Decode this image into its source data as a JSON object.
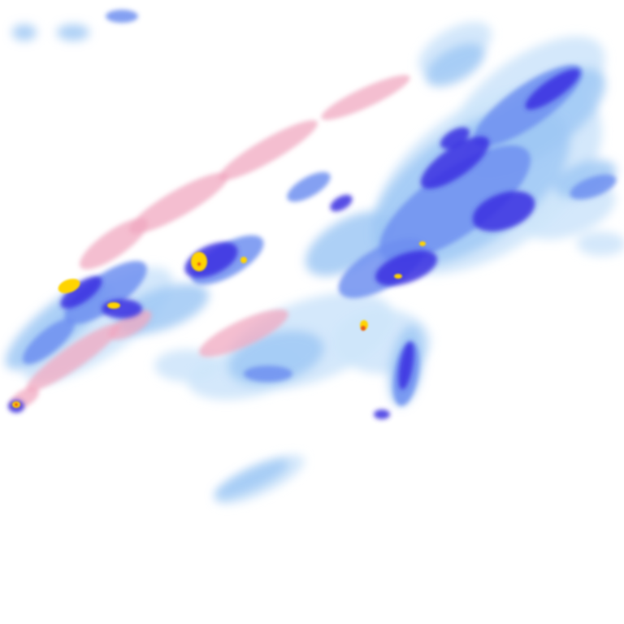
{
  "map": {
    "background": "#ffffff",
    "palette": {
      "very_light": "#cfe6fb",
      "light": "#9fc8f5",
      "medium": "#6f8ff0",
      "strong": "#3a2fe0",
      "heavy": "#ffd400",
      "extreme": "#e8581a",
      "mixed": "#f0a8c0"
    }
  }
}
